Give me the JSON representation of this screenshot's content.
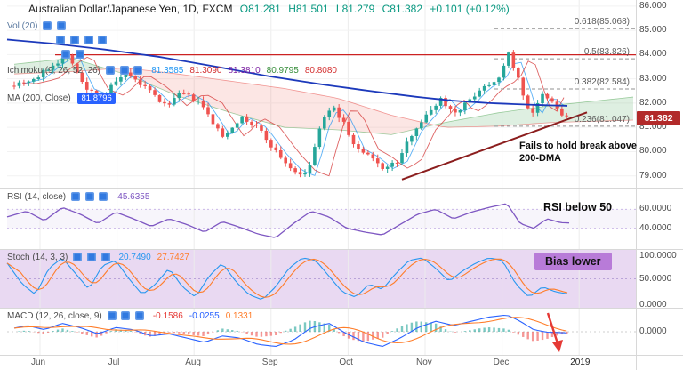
{
  "header": {
    "symbol": "Australian Dollar/Japanese Yen, 1D, FXCM",
    "open": "O81.281",
    "high": "H81.501",
    "low": "L81.279",
    "close": "C81.382",
    "change": "+0.101 (+0.12%)"
  },
  "legends": {
    "vol": {
      "label": "Vol (20)"
    },
    "ichimoku": {
      "label": "Ichimoku (9, 26, 52, 26)",
      "values": [
        "81.3585",
        "81.3090",
        "81.3810",
        "80.9795",
        "80.8080"
      ]
    },
    "ma": {
      "label": "MA (200, Close)",
      "value": "81.8796"
    }
  },
  "fib_levels": [
    {
      "label": "0.618(85.068)",
      "price": 85.068
    },
    {
      "label": "0.5(83.826)",
      "price": 83.826
    },
    {
      "label": "0.382(82.584)",
      "price": 82.584
    },
    {
      "label": "0.236(81.047)",
      "price": 81.047
    }
  ],
  "annotations": {
    "main": "Fails to hold break above 200-DMA",
    "rsi": "RSI below 50",
    "stoch": "Bias lower"
  },
  "price_axis": {
    "ticks": [
      "86.000",
      "85.000",
      "84.000",
      "83.000",
      "82.000",
      "81.000",
      "80.000",
      "79.000"
    ],
    "last_price": "81.382"
  },
  "panels": {
    "rsi": {
      "label": "RSI (14, close)",
      "value": "45.6355",
      "ticks": [
        "60.0000",
        "40.0000"
      ]
    },
    "stoch": {
      "label": "Stoch (14, 3, 3)",
      "values": [
        "20.7490",
        "27.7427"
      ],
      "ticks": [
        "100.0000",
        "50.0000",
        "0.0000"
      ]
    },
    "macd": {
      "label": "MACD (12, 26, close, 9)",
      "values": [
        "-0.1586",
        "-0.0255",
        "0.1331"
      ],
      "ticks": [
        "0.0000"
      ]
    }
  },
  "time_axis": {
    "labels": [
      "Jun",
      "Jul",
      "Aug",
      "Sep",
      "Oct",
      "Nov",
      "Dec",
      "2019"
    ]
  },
  "colors": {
    "up": "#26a69a",
    "down": "#ef5350",
    "ma200": "#1c39bb",
    "resistance": "#cc2222",
    "trendline": "#8b1d1d",
    "tenkan": "#2196f3",
    "kijun": "#d32f2f",
    "cloud_up": "rgba(103,183,119,0.22)",
    "cloud_down": "rgba(239,131,120,0.20)",
    "rsi": "#7e57c2",
    "stoch_k": "#2797f0",
    "stoch_d": "#ff7d2a",
    "macd": "#2962ff",
    "macd_signal": "#ff7d2a",
    "hist_pos": "#26a69a",
    "hist_neg": "#ef5350",
    "badge_bg": "#b22a2a",
    "chip_bg": "#b87bd8",
    "stoch_panel_bg": "#e9d9f2",
    "ohlc_green": "#089981",
    "ichimoku_values": [
      "#2196f3",
      "#d32f2f",
      "#7b1fa2",
      "#388e3c",
      "#d32f2f"
    ],
    "stoch_values": [
      "#2797f0",
      "#ff7d2a"
    ],
    "macd_values": [
      "#e53935",
      "#2962ff",
      "#ff7d2a"
    ]
  },
  "chart_data": {
    "type": "candlestick",
    "title": "Australian Dollar/Japanese Yen, 1D, FXCM",
    "x_axis": [
      "Jun",
      "Jul",
      "Aug",
      "Sep",
      "Oct",
      "Nov",
      "Dec",
      "2019"
    ],
    "price_range": [
      79.0,
      86.0
    ],
    "close_path": [
      [
        16,
        82.8
      ],
      [
        40,
        83.0
      ],
      [
        60,
        83.6
      ],
      [
        78,
        84.0
      ],
      [
        95,
        82.6
      ],
      [
        115,
        82.3
      ],
      [
        140,
        83.2
      ],
      [
        165,
        82.6
      ],
      [
        185,
        81.9
      ],
      [
        205,
        82.4
      ],
      [
        225,
        82.0
      ],
      [
        250,
        80.6
      ],
      [
        270,
        81.4
      ],
      [
        290,
        81.0
      ],
      [
        310,
        80.0
      ],
      [
        330,
        79.2
      ],
      [
        345,
        79.0
      ],
      [
        360,
        81.0
      ],
      [
        372,
        81.9
      ],
      [
        385,
        81.3
      ],
      [
        400,
        80.1
      ],
      [
        415,
        79.8
      ],
      [
        432,
        79.3
      ],
      [
        448,
        79.6
      ],
      [
        465,
        80.9
      ],
      [
        480,
        81.5
      ],
      [
        495,
        82.2
      ],
      [
        510,
        81.6
      ],
      [
        525,
        82.0
      ],
      [
        540,
        82.6
      ],
      [
        555,
        82.9
      ],
      [
        565,
        83.3
      ],
      [
        572,
        84.05
      ],
      [
        580,
        83.3
      ],
      [
        592,
        81.9
      ],
      [
        600,
        81.6
      ],
      [
        610,
        82.3
      ],
      [
        622,
        82.0
      ],
      [
        632,
        81.5
      ],
      [
        640,
        81.38
      ]
    ],
    "ma200": [
      [
        8,
        84.62
      ],
      [
        60,
        84.45
      ],
      [
        120,
        84.2
      ],
      [
        180,
        83.9
      ],
      [
        240,
        83.52
      ],
      [
        300,
        83.12
      ],
      [
        360,
        82.78
      ],
      [
        420,
        82.48
      ],
      [
        470,
        82.25
      ],
      [
        510,
        82.1
      ],
      [
        550,
        82.0
      ],
      [
        600,
        81.93
      ],
      [
        645,
        81.88
      ]
    ],
    "ichimoku_span_a": [
      [
        16,
        83.6
      ],
      [
        80,
        83.85
      ],
      [
        140,
        83.2
      ],
      [
        200,
        82.3
      ],
      [
        260,
        81.6
      ],
      [
        320,
        81.0
      ],
      [
        380,
        80.9
      ],
      [
        440,
        80.7
      ],
      [
        500,
        81.2
      ],
      [
        560,
        81.6
      ],
      [
        620,
        81.9
      ],
      [
        712,
        82.25
      ]
    ],
    "ichimoku_span_b": [
      [
        16,
        83.2
      ],
      [
        80,
        83.3
      ],
      [
        140,
        83.45
      ],
      [
        200,
        83.2
      ],
      [
        260,
        82.9
      ],
      [
        320,
        82.6
      ],
      [
        380,
        82.2
      ],
      [
        440,
        81.5
      ],
      [
        500,
        81.0
      ],
      [
        560,
        81.05
      ],
      [
        620,
        81.2
      ],
      [
        712,
        81.3
      ]
    ],
    "resistance_price": 83.99,
    "trendline": [
      [
        452,
        78.85
      ],
      [
        660,
        81.62
      ]
    ],
    "fib_prices": [
      85.068,
      83.826,
      82.584,
      81.047
    ],
    "rsi": [
      [
        8,
        52
      ],
      [
        30,
        58
      ],
      [
        50,
        48
      ],
      [
        70,
        62
      ],
      [
        90,
        55
      ],
      [
        110,
        45
      ],
      [
        130,
        57
      ],
      [
        150,
        50
      ],
      [
        170,
        42
      ],
      [
        190,
        50
      ],
      [
        210,
        44
      ],
      [
        230,
        36
      ],
      [
        250,
        47
      ],
      [
        270,
        41
      ],
      [
        290,
        34
      ],
      [
        310,
        30
      ],
      [
        330,
        45
      ],
      [
        350,
        58
      ],
      [
        370,
        52
      ],
      [
        390,
        40
      ],
      [
        410,
        36
      ],
      [
        430,
        33
      ],
      [
        450,
        44
      ],
      [
        470,
        55
      ],
      [
        490,
        60
      ],
      [
        510,
        50
      ],
      [
        530,
        57
      ],
      [
        550,
        62
      ],
      [
        570,
        66
      ],
      [
        585,
        45
      ],
      [
        600,
        40
      ],
      [
        615,
        50
      ],
      [
        630,
        46
      ],
      [
        640,
        45.6
      ]
    ],
    "stoch_k": [
      [
        8,
        80
      ],
      [
        25,
        40
      ],
      [
        40,
        20
      ],
      [
        55,
        70
      ],
      [
        70,
        90
      ],
      [
        85,
        60
      ],
      [
        100,
        30
      ],
      [
        115,
        75
      ],
      [
        130,
        85
      ],
      [
        145,
        50
      ],
      [
        160,
        20
      ],
      [
        175,
        40
      ],
      [
        190,
        70
      ],
      [
        205,
        35
      ],
      [
        220,
        15
      ],
      [
        235,
        55
      ],
      [
        250,
        80
      ],
      [
        265,
        45
      ],
      [
        280,
        20
      ],
      [
        295,
        10
      ],
      [
        310,
        35
      ],
      [
        325,
        70
      ],
      [
        340,
        90
      ],
      [
        355,
        85
      ],
      [
        370,
        55
      ],
      [
        385,
        25
      ],
      [
        400,
        15
      ],
      [
        415,
        40
      ],
      [
        430,
        30
      ],
      [
        445,
        60
      ],
      [
        460,
        85
      ],
      [
        475,
        90
      ],
      [
        490,
        70
      ],
      [
        505,
        45
      ],
      [
        520,
        65
      ],
      [
        535,
        80
      ],
      [
        550,
        90
      ],
      [
        565,
        85
      ],
      [
        580,
        40
      ],
      [
        595,
        15
      ],
      [
        610,
        35
      ],
      [
        625,
        25
      ],
      [
        640,
        21
      ]
    ],
    "macd_line": [
      [
        8,
        0.05
      ],
      [
        30,
        0.15
      ],
      [
        50,
        0.05
      ],
      [
        70,
        0.2
      ],
      [
        90,
        0.1
      ],
      [
        110,
        -0.05
      ],
      [
        130,
        0.1
      ],
      [
        150,
        0.05
      ],
      [
        170,
        -0.1
      ],
      [
        190,
        -0.05
      ],
      [
        210,
        -0.15
      ],
      [
        230,
        -0.25
      ],
      [
        250,
        -0.1
      ],
      [
        270,
        -0.15
      ],
      [
        290,
        -0.3
      ],
      [
        310,
        -0.35
      ],
      [
        330,
        -0.2
      ],
      [
        350,
        0.1
      ],
      [
        370,
        0.2
      ],
      [
        390,
        -0.05
      ],
      [
        410,
        -0.25
      ],
      [
        430,
        -0.35
      ],
      [
        450,
        -0.15
      ],
      [
        470,
        0.1
      ],
      [
        490,
        0.25
      ],
      [
        510,
        0.15
      ],
      [
        530,
        0.25
      ],
      [
        550,
        0.35
      ],
      [
        570,
        0.4
      ],
      [
        585,
        0.25
      ],
      [
        600,
        0.05
      ],
      [
        615,
        -0.01
      ],
      [
        630,
        -0.02
      ],
      [
        640,
        -0.03
      ]
    ]
  }
}
